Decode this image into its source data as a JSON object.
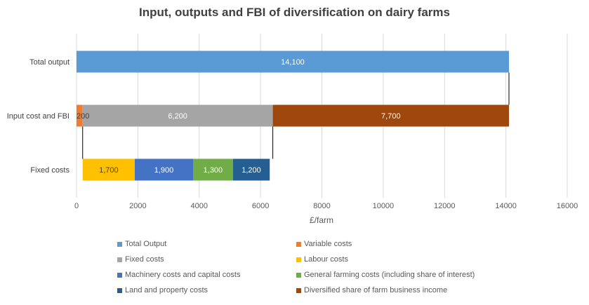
{
  "chart_data": {
    "type": "bar",
    "orientation": "horizontal",
    "stacked": true,
    "title": "Input, outputs and FBI of diversification on dairy farms",
    "xlabel": "£/farm",
    "ylabel": "",
    "xlim": [
      0,
      16000
    ],
    "x_ticks": [
      "0",
      "2000",
      "4000",
      "6000",
      "8000",
      "10000",
      "12000",
      "14000",
      "16000"
    ],
    "categories": [
      "Total output",
      "Input cost and FBI",
      "Fixed costs"
    ],
    "grid": true,
    "legend_position": "bottom",
    "bars": [
      {
        "category": "Total output",
        "segments": [
          {
            "series": "Total Output",
            "start": 0,
            "value": 14100,
            "label": "14,100"
          }
        ]
      },
      {
        "category": "Input cost and FBI",
        "segments": [
          {
            "series": "Variable costs",
            "start": 0,
            "value": 200,
            "label": "200"
          },
          {
            "series": "Fixed costs",
            "start": 200,
            "value": 6200,
            "label": "6,200"
          },
          {
            "series": "Diversified share of farm business income",
            "start": 6400,
            "value": 7700,
            "label": "7,700"
          }
        ]
      },
      {
        "category": "Fixed costs",
        "segments": [
          {
            "series": "Labour costs",
            "start": 200,
            "value": 1700,
            "label": "1,700"
          },
          {
            "series": "Machinery costs and capital costs",
            "start": 1900,
            "value": 1900,
            "label": "1,900"
          },
          {
            "series": "General farming costs (including share of interest)",
            "start": 3800,
            "value": 1300,
            "label": "1,300"
          },
          {
            "series": "Land and property costs",
            "start": 5100,
            "value": 1200,
            "label": "1,200"
          }
        ]
      }
    ],
    "series": [
      {
        "name": "Total Output",
        "color": "#5b9bd5"
      },
      {
        "name": "Variable costs",
        "color": "#ed7d31"
      },
      {
        "name": "Fixed costs",
        "color": "#a5a5a5"
      },
      {
        "name": "Labour costs",
        "color": "#ffc000"
      },
      {
        "name": "Machinery costs and capital costs",
        "color": "#4472c4"
      },
      {
        "name": "General farming costs (including share of interest)",
        "color": "#70ad47"
      },
      {
        "name": "Land and property costs",
        "color": "#255e91"
      },
      {
        "name": "Diversified share of farm business income",
        "color": "#9e480e"
      }
    ],
    "connector_values": [
      14100,
      200,
      6400
    ]
  }
}
